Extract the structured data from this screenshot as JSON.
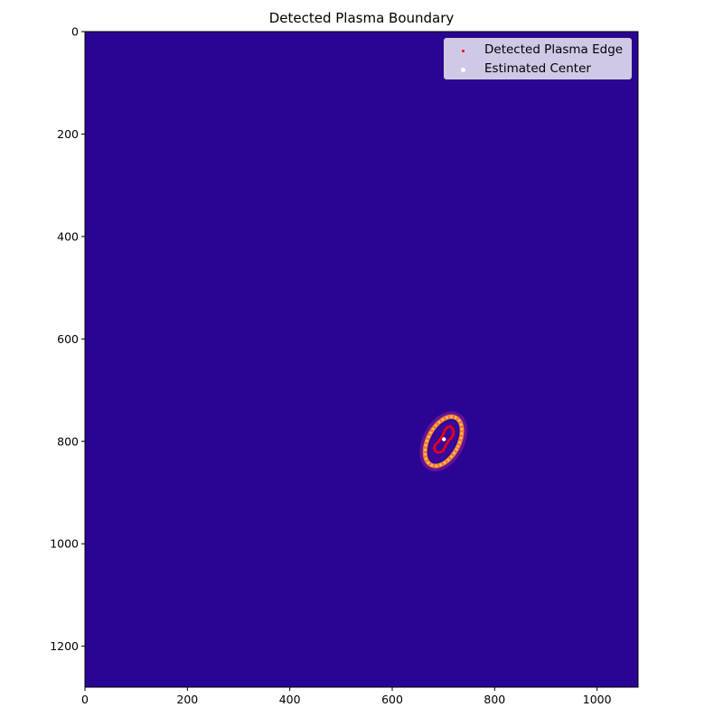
{
  "chart_data": {
    "type": "scatter",
    "title": "Detected Plasma Boundary",
    "xlabel": "",
    "ylabel": "",
    "xlim": [
      0,
      1080
    ],
    "ylim": [
      1280,
      0
    ],
    "y_axis_inverted": true,
    "x_ticks": [
      0,
      200,
      400,
      600,
      800,
      1000
    ],
    "y_ticks": [
      0,
      200,
      400,
      600,
      800,
      1000,
      1200
    ],
    "background_image": {
      "description": "plasma colormap intensity image",
      "background_color": "#2a0593",
      "bright_ring": {
        "center": [
          700,
          800
        ],
        "semi_axis_major": 52,
        "semi_axis_minor": 30,
        "tilt_deg": 28
      }
    },
    "legend_position": "top-right",
    "series": [
      {
        "name": "Detected Plasma Edge",
        "color": "#ff0000",
        "points": [
          [
            713,
            771
          ],
          [
            718,
            775
          ],
          [
            720,
            781
          ],
          [
            719,
            788
          ],
          [
            715,
            794
          ],
          [
            710,
            799
          ],
          [
            706,
            805
          ],
          [
            703,
            811
          ],
          [
            700,
            817
          ],
          [
            695,
            821
          ],
          [
            689,
            822
          ],
          [
            684,
            819
          ],
          [
            682,
            813
          ],
          [
            684,
            807
          ],
          [
            689,
            802
          ],
          [
            693,
            797
          ],
          [
            697,
            791
          ],
          [
            700,
            785
          ],
          [
            703,
            778
          ],
          [
            707,
            773
          ]
        ]
      },
      {
        "name": "Estimated Center",
        "color": "#ffffff",
        "points": [
          [
            701,
            796
          ]
        ]
      }
    ]
  }
}
